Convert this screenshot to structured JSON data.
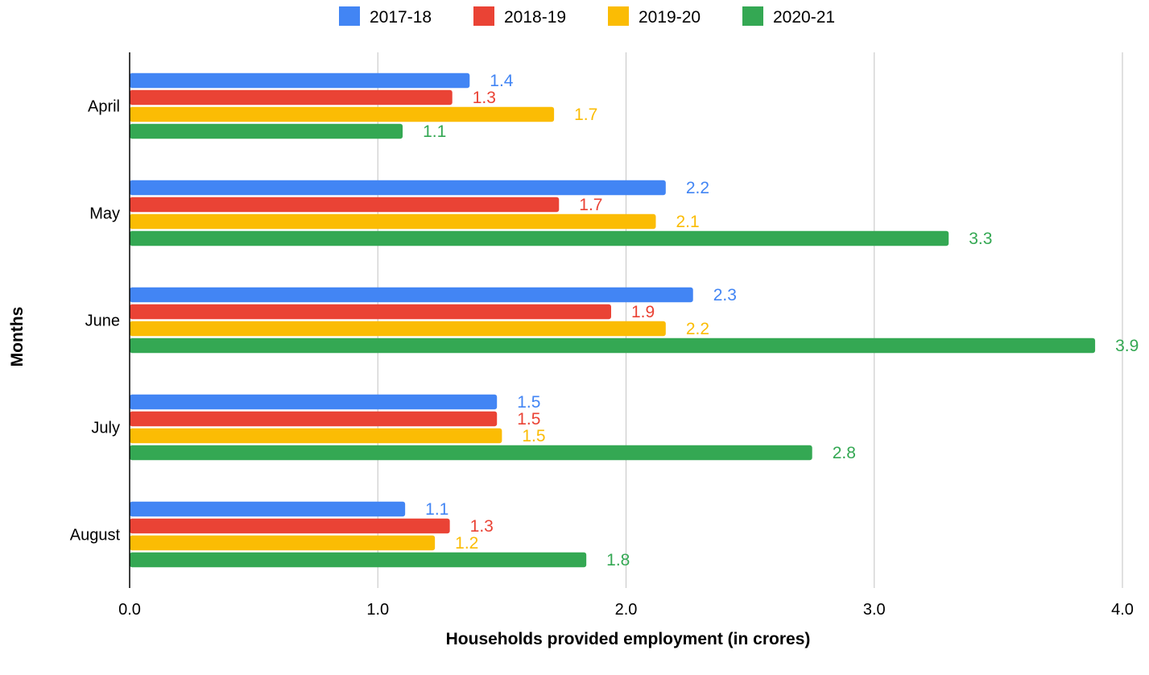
{
  "chart_data": {
    "type": "bar",
    "orientation": "horizontal",
    "categories": [
      "April",
      "May",
      "June",
      "July",
      "August"
    ],
    "series": [
      {
        "name": "2017-18",
        "color": "#4285F4",
        "values": [
          1.37,
          2.16,
          2.27,
          1.48,
          1.11
        ],
        "labels": [
          "1.4",
          "2.2",
          "2.3",
          "1.5",
          "1.1"
        ]
      },
      {
        "name": "2018-19",
        "color": "#EA4335",
        "values": [
          1.3,
          1.73,
          1.94,
          1.48,
          1.29
        ],
        "labels": [
          "1.3",
          "1.7",
          "1.9",
          "1.5",
          "1.3"
        ]
      },
      {
        "name": "2019-20",
        "color": "#FBBC04",
        "values": [
          1.71,
          2.12,
          2.16,
          1.5,
          1.23
        ],
        "labels": [
          "1.7",
          "2.1",
          "2.2",
          "1.5",
          "1.2"
        ]
      },
      {
        "name": "2020-21",
        "color": "#34A853",
        "values": [
          1.1,
          3.3,
          3.89,
          2.75,
          1.84
        ],
        "labels": [
          "1.1",
          "3.3",
          "3.9",
          "2.8",
          "1.8"
        ]
      }
    ],
    "title": "",
    "xlabel": "Households provided employment (in crores)",
    "ylabel": "Months",
    "xlim": [
      0,
      4
    ],
    "xticks": [
      "0.0",
      "1.0",
      "2.0",
      "3.0",
      "4.0"
    ],
    "grid": true,
    "legend": "top-center"
  }
}
